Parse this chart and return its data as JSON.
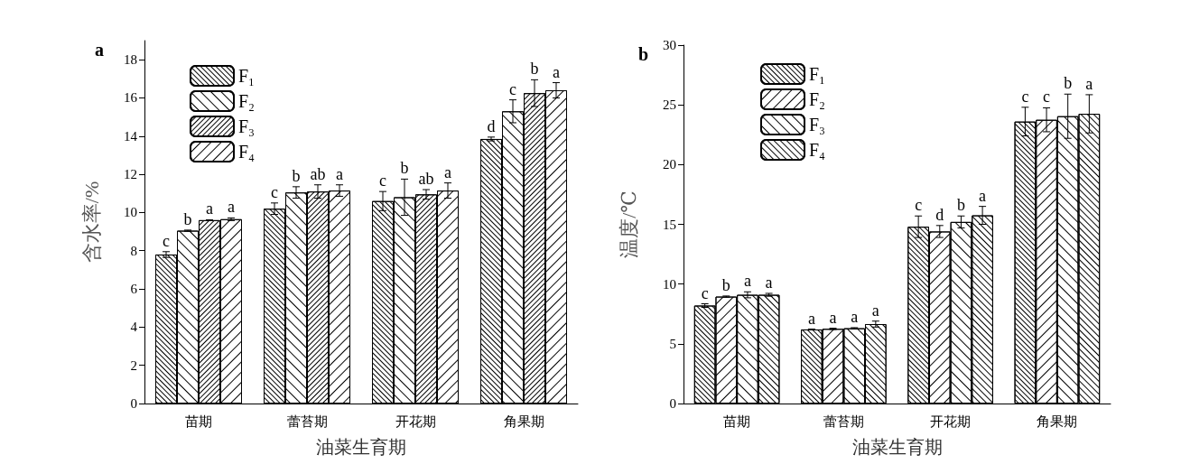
{
  "chart_data": [
    {
      "type": "bar",
      "title": "a",
      "xlabel": "油菜生育期",
      "ylabel": "含水率/%",
      "categories": [
        "苗期",
        "蕾苔期",
        "开花期",
        "角果期"
      ],
      "ylim": [
        0,
        19
      ],
      "yticks": [
        0,
        2,
        4,
        6,
        8,
        10,
        12,
        14,
        16,
        18
      ],
      "grid": false,
      "legend": "top left",
      "series": [
        {
          "name": "F₁",
          "color": "#ffffff",
          "values": [
            7.8,
            10.2,
            10.6,
            13.85
          ],
          "errors": [
            0.15,
            0.3,
            0.5,
            0.1
          ],
          "value_labels": [
            "c",
            "c",
            "c",
            "d"
          ]
        },
        {
          "name": "F₂",
          "color": "#ffffff",
          "values": [
            9.05,
            11.05,
            10.8,
            15.3
          ],
          "errors": [
            0.03,
            0.3,
            0.95,
            0.6
          ],
          "value_labels": [
            "b",
            "b",
            "b",
            "c"
          ]
        },
        {
          "name": "F₃",
          "color": "#ffffff",
          "values": [
            9.6,
            11.1,
            10.95,
            16.25
          ],
          "errors": [
            0.02,
            0.35,
            0.25,
            0.7
          ],
          "value_labels": [
            "a",
            "ab",
            "ab",
            "b"
          ]
        },
        {
          "name": "F₄",
          "color": "#ffffff",
          "values": [
            9.65,
            11.15,
            11.15,
            16.4
          ],
          "errors": [
            0.07,
            0.3,
            0.4,
            0.4
          ],
          "value_labels": [
            "a",
            "a",
            "a",
            "a"
          ]
        }
      ]
    },
    {
      "type": "bar",
      "title": "b",
      "xlabel": "油菜生育期",
      "ylabel": "温度/℃",
      "categories": [
        "苗期",
        "蕾苔期",
        "开花期",
        "角果期"
      ],
      "ylim": [
        0,
        30
      ],
      "yticks": [
        0,
        5,
        10,
        15,
        20,
        25,
        30
      ],
      "grid": false,
      "legend": "top left",
      "series": [
        {
          "name": "F₁",
          "color": "#ffffff",
          "values": [
            8.2,
            6.2,
            14.8,
            23.6
          ],
          "errors": [
            0.15,
            0.03,
            0.9,
            1.2
          ],
          "value_labels": [
            "c",
            "a",
            "c",
            "c"
          ]
        },
        {
          "name": "F₂",
          "color": "#ffffff",
          "values": [
            8.95,
            6.25,
            14.4,
            23.75
          ],
          "errors": [
            0.05,
            0.05,
            0.5,
            1.0
          ],
          "value_labels": [
            "b",
            "a",
            "d",
            "c"
          ]
        },
        {
          "name": "F₃",
          "color": "#ffffff",
          "values": [
            9.1,
            6.3,
            15.2,
            24.05
          ],
          "errors": [
            0.25,
            0.05,
            0.5,
            1.85
          ],
          "value_labels": [
            "a",
            "a",
            "b",
            "b"
          ]
        },
        {
          "name": "F₄",
          "color": "#ffffff",
          "values": [
            9.1,
            6.65,
            15.75,
            24.25
          ],
          "errors": [
            0.12,
            0.25,
            0.75,
            1.6
          ],
          "value_labels": [
            "a",
            "a",
            "a",
            "a"
          ]
        }
      ]
    }
  ]
}
